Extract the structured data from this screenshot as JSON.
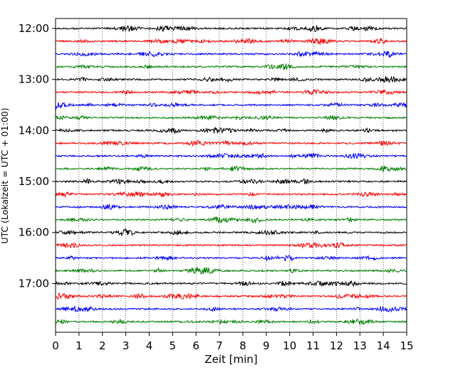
{
  "chart_data": {
    "type": "line",
    "title": "",
    "xlabel": "Zeit  [min]",
    "ylabel": "UTC (Lokalzeit = UTC + 01:00)",
    "xlim": [
      0,
      15
    ],
    "x_ticks": [
      "0",
      "1",
      "2",
      "3",
      "4",
      "5",
      "6",
      "7",
      "8",
      "9",
      "10",
      "11",
      "12",
      "13",
      "14",
      "15"
    ],
    "y_ticks": [
      "12:00",
      "13:00",
      "14:00",
      "15:00",
      "16:00",
      "17:00"
    ],
    "grid_x": "dotted",
    "trace_interval_minutes": 15,
    "trace_start": "12:00",
    "trace_count": 24,
    "series_colors": [
      "#000000",
      "#ff0000",
      "#0000ff",
      "#008000"
    ]
  }
}
